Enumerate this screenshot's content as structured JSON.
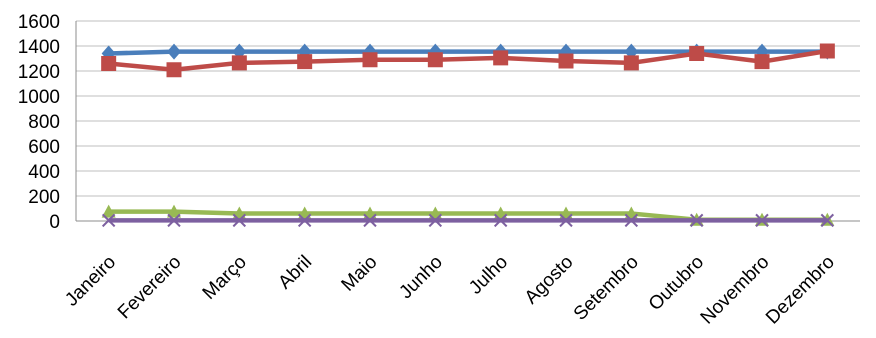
{
  "chart_data": {
    "type": "line",
    "categories": [
      "Janeiro",
      "Fevereiro",
      "Março",
      "Abril",
      "Maio",
      "Junho",
      "Julho",
      "Agosto",
      "Setembro",
      "Outubro",
      "Novembro",
      "Dezembro"
    ],
    "ylim": [
      0,
      1600
    ],
    "yticks": [
      0,
      200,
      400,
      600,
      800,
      1000,
      1200,
      1400,
      1600
    ],
    "grid": true,
    "legend": "none",
    "series": [
      {
        "marker": "diamond",
        "color": "#4a7ebb",
        "values": [
          1340,
          1355,
          1355,
          1355,
          1355,
          1355,
          1355,
          1355,
          1355,
          1355,
          1355,
          1355
        ]
      },
      {
        "marker": "square",
        "color": "#be4b48",
        "values": [
          1260,
          1210,
          1265,
          1275,
          1290,
          1290,
          1305,
          1280,
          1265,
          1340,
          1275,
          1360
        ]
      },
      {
        "marker": "triangle",
        "color": "#98b954",
        "values": [
          75,
          75,
          60,
          60,
          60,
          60,
          60,
          60,
          60,
          10,
          10,
          10
        ]
      },
      {
        "marker": "x",
        "color": "#7d60a0",
        "values": [
          5,
          5,
          5,
          5,
          5,
          5,
          5,
          5,
          5,
          5,
          5,
          5
        ]
      }
    ]
  }
}
